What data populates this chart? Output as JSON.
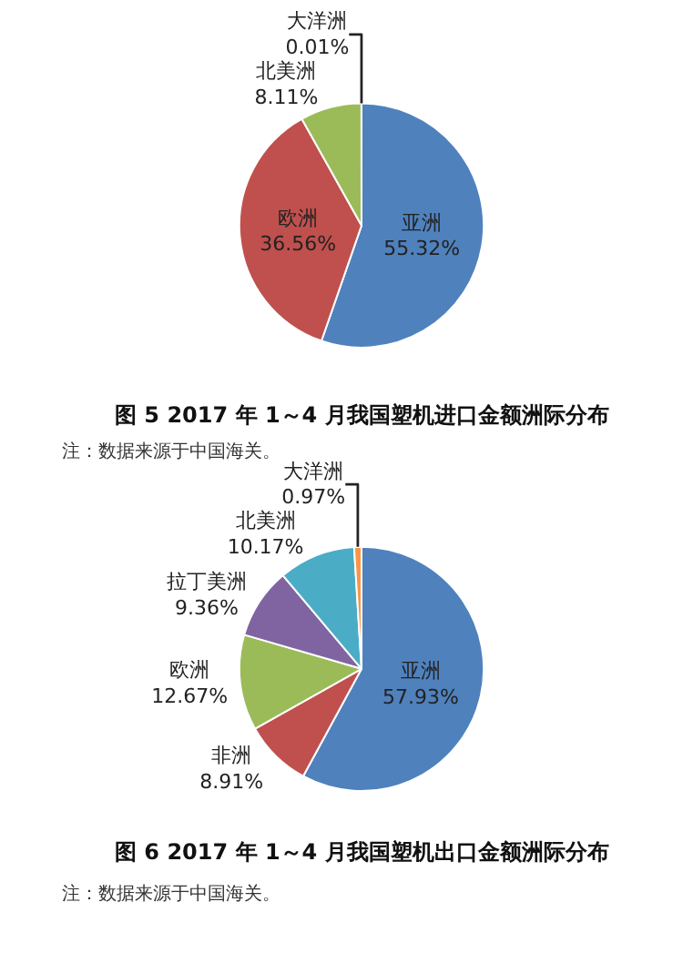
{
  "chart_data": [
    {
      "type": "pie",
      "title": "图 5 2017 年 1～4 月我国塑机进口金额洲际分布",
      "categories": [
        "亚洲",
        "欧洲",
        "北美洲",
        "大洋洲"
      ],
      "values": [
        55.32,
        36.56,
        8.11,
        0.01
      ],
      "value_labels": [
        "55.32%",
        "36.56%",
        "8.11%",
        "0.01%"
      ],
      "colors": [
        "#4f81bd",
        "#c0504d",
        "#9bbb59",
        "#8064a2"
      ],
      "annotations": [
        "注：数据来源于中国海关。"
      ]
    },
    {
      "type": "pie",
      "title": "图 6 2017 年 1～4 月我国塑机出口金额洲际分布",
      "categories": [
        "亚洲",
        "非洲",
        "欧洲",
        "拉丁美洲",
        "北美洲",
        "大洋洲"
      ],
      "values": [
        57.93,
        8.91,
        12.67,
        9.36,
        10.17,
        0.97
      ],
      "value_labels": [
        "57.93%",
        "8.91%",
        "12.67%",
        "9.36%",
        "10.17%",
        "0.97%"
      ],
      "colors": [
        "#4f81bd",
        "#c0504d",
        "#9bbb59",
        "#8064a2",
        "#4bacc6",
        "#f79646"
      ],
      "annotations": [
        "注：数据来源于中国海关。"
      ]
    }
  ]
}
